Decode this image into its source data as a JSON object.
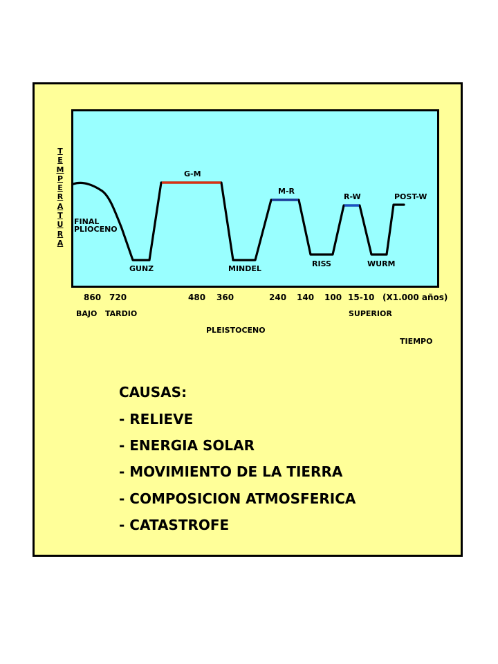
{
  "diagram": {
    "y_axis_letters": [
      "T",
      "E",
      "M",
      "P",
      "E",
      "R",
      "A",
      "T",
      "U",
      "R",
      "A"
    ],
    "x_axis_title": "TIEMPO",
    "x_ticks": [
      "860",
      "720",
      "480",
      "360",
      "240",
      "140",
      "100",
      "15-10",
      "(X1.000 años)"
    ],
    "period_labels": {
      "bajo": "BAJO",
      "tardio": "TARDIO",
      "superior": "SUPERIOR",
      "pleistoceno": "PLEISTOCENO"
    },
    "curve_labels": {
      "final": "FINAL",
      "plioceno": "PLIOCENO",
      "gunz": "GUNZ",
      "gm": "G-M",
      "mindel": "MINDEL",
      "mr": "M-R",
      "riss": "RISS",
      "rw": "R-W",
      "wurm": "WURM",
      "postw": "POST-W"
    },
    "colors": {
      "slide_bg": "#ffff99",
      "plot_bg": "#99ffff",
      "curve": "#000000",
      "gm_segment": "#e03010",
      "mr_segment": "#1a3a9c",
      "rw_segment": "#1a50c8"
    }
  },
  "causes": {
    "title": "CAUSAS:",
    "items": [
      "- RELIEVE",
      "- ENERGIA SOLAR",
      "- MOVIMIENTO DE LA TIERRA",
      "- COMPOSICION ATMOSFERICA",
      "- CATASTROFE"
    ]
  }
}
